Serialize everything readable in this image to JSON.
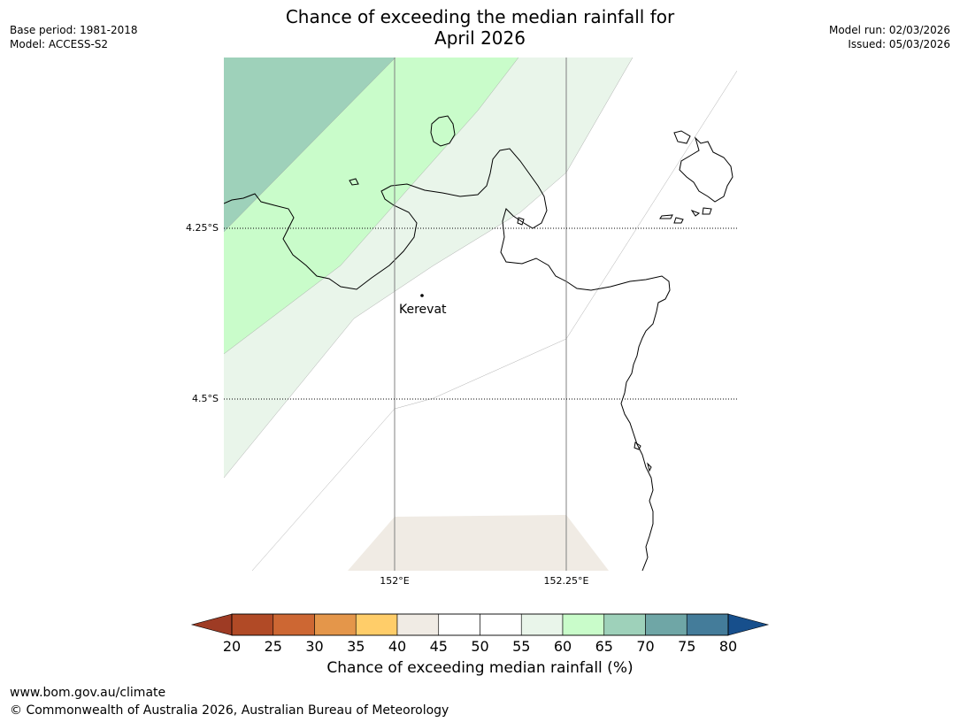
{
  "title_line1": "Chance of exceeding the median rainfall for",
  "title_line2": "April 2026",
  "meta_left": {
    "base_period": "Base period: 1981-2018",
    "model": "Model: ACCESS-S2"
  },
  "meta_right": {
    "model_run": "Model run: 02/03/2026",
    "issued": "Issued: 05/03/2026"
  },
  "map": {
    "lat_labels": [
      "4.25°S",
      "4.5°S"
    ],
    "lon_labels": [
      "152°E",
      "152.25°E"
    ],
    "town": "Kerevat",
    "zones": [
      {
        "range": "65-70",
        "color": "#9ed1ba"
      },
      {
        "range": "60-65",
        "color": "#c9fcca"
      },
      {
        "range": "55-60",
        "color": "#e9f5ea"
      },
      {
        "range": "40-45",
        "color": "#f0ebe4"
      }
    ]
  },
  "colorbar": {
    "ticks": [
      "20",
      "25",
      "30",
      "35",
      "40",
      "45",
      "50",
      "55",
      "60",
      "65",
      "70",
      "75",
      "80"
    ],
    "low_extend_color": "#9e3b24",
    "high_extend_color": "#174f8c",
    "colors": [
      "#b14a26",
      "#cd6733",
      "#e4964a",
      "#ffcd69",
      "#f0ebe4",
      "#ffffff",
      "#ffffff",
      "#e9f5ea",
      "#c9fcca",
      "#9ed1ba",
      "#6fa6a6",
      "#447c9a"
    ],
    "label": "Chance of exceeding median rainfall (%)"
  },
  "footer": {
    "url": "www.bom.gov.au/climate",
    "copyright": "© Commonwealth of Australia 2026, Australian Bureau of Meteorology"
  }
}
